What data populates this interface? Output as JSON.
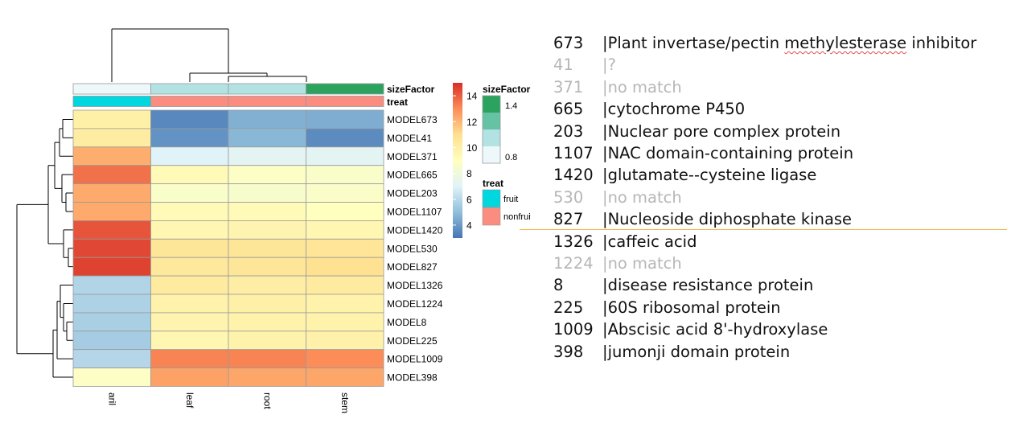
{
  "chart_data": {
    "type": "heatmap",
    "columns": [
      "aril",
      "leaf",
      "root",
      "stem"
    ],
    "rows": [
      "MODEL673",
      "MODEL41",
      "MODEL371",
      "MODEL665",
      "MODEL203",
      "MODEL1107",
      "MODEL1420",
      "MODEL530",
      "MODEL827",
      "MODEL1326",
      "MODEL1224",
      "MODEL8",
      "MODEL225",
      "MODEL1009",
      "MODEL398"
    ],
    "values": [
      [
        10.0,
        3.5,
        4.6,
        4.5
      ],
      [
        10.2,
        3.8,
        4.8,
        3.6
      ],
      [
        12.2,
        7.0,
        7.2,
        7.2
      ],
      [
        13.6,
        9.3,
        8.8,
        8.6
      ],
      [
        12.3,
        8.6,
        8.5,
        8.7
      ],
      [
        12.3,
        9.3,
        9.3,
        9.0
      ],
      [
        14.2,
        9.6,
        9.7,
        9.6
      ],
      [
        14.5,
        10.6,
        10.6,
        10.7
      ],
      [
        14.6,
        10.5,
        10.6,
        10.9
      ],
      [
        5.8,
        10.3,
        10.1,
        10.3
      ],
      [
        5.7,
        9.8,
        10.0,
        9.8
      ],
      [
        5.6,
        9.7,
        9.8,
        9.8
      ],
      [
        5.5,
        9.6,
        9.8,
        9.9
      ],
      [
        5.9,
        13.2,
        13.2,
        13.0
      ],
      [
        8.8,
        12.5,
        12.4,
        12.4
      ]
    ],
    "color_scale": {
      "min": 3,
      "max": 15,
      "ticks": [
        4,
        6,
        8,
        10,
        12,
        14
      ],
      "colors": [
        "#4575b4",
        "#91bfdb",
        "#e0f3f8",
        "#ffffbf",
        "#fee090",
        "#fc8d59",
        "#d73027"
      ]
    },
    "col_annotations": {
      "sizeFactor": {
        "label": "sizeFactor",
        "values": [
          0.8,
          1.0,
          1.0,
          1.4
        ],
        "legend_ticks": [
          "1.4",
          "0.8"
        ],
        "colors": [
          "#edf8fb",
          "#b2e2e2",
          "#66c2a4",
          "#2ca25f"
        ]
      },
      "treat": {
        "label": "treat",
        "values": [
          "fruit",
          "nonfruit",
          "nonfruit",
          "nonfruit"
        ],
        "levels": [
          "fruit",
          "nonfruit"
        ],
        "colors": {
          "fruit": "#00d7df",
          "nonfruit": "#fb8c80"
        }
      }
    }
  },
  "annotations": [
    {
      "id": "673",
      "desc_plain": "|Plant invertase/pectin ",
      "desc_marked": "methylesterase",
      "desc_tail": " inhibitor",
      "muted": false
    },
    {
      "id": "41",
      "desc": "|?",
      "muted": true
    },
    {
      "id": "371",
      "desc": "|no match",
      "muted": true
    },
    {
      "id": "665",
      "desc": "|cytochrome P450",
      "muted": false
    },
    {
      "id": "203",
      "desc": "|Nuclear pore complex protein",
      "muted": false
    },
    {
      "id": "1107",
      "desc": "|NAC domain-containing protein",
      "muted": false
    },
    {
      "id": "1420",
      "desc": "|glutamate--cysteine ligase",
      "muted": false
    },
    {
      "id": "530",
      "desc": "|no match",
      "muted": true
    },
    {
      "id": "827",
      "desc": "|Nucleoside diphosphate kinase",
      "muted": false
    },
    {
      "id": "1326",
      "desc": "|caffeic acid",
      "muted": false
    },
    {
      "id": "1224",
      "desc": "|no match",
      "muted": true
    },
    {
      "id": "8",
      "desc": "|disease resistance protein",
      "muted": false
    },
    {
      "id": "225",
      "desc": "|60S ribosomal protein",
      "muted": false
    },
    {
      "id": "1009",
      "desc": "|Abscisic acid 8'-hydroxylase",
      "muted": false
    },
    {
      "id": "398",
      "desc": "|jumonji domain protein",
      "muted": false
    }
  ]
}
